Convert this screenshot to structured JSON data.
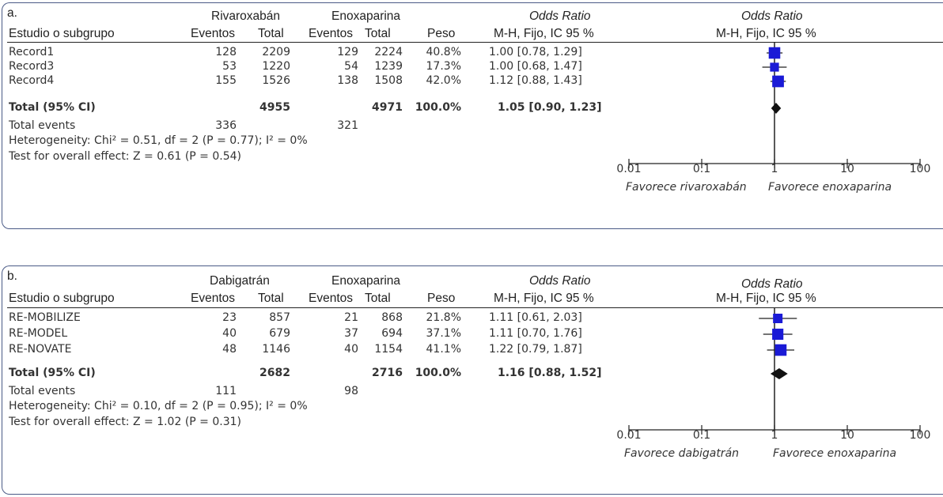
{
  "chart_data": [
    {
      "type": "forest",
      "panel_label": "a.",
      "col_study": "Estudio o subgrupo",
      "group1": "Rivaroxabán",
      "group2": "Enoxaparina",
      "col_events": "Eventos",
      "col_total": "Total",
      "col_weight": "Peso",
      "or_title": "Odds Ratio",
      "or_method": "M-H, Fijo, IC 95 %",
      "studies": [
        {
          "name": "Record1",
          "e1": "128",
          "n1": "2209",
          "e2": "129",
          "n2": "2224",
          "weight": "40.8%",
          "ci_text": "1.00 [0.78, 1.29]",
          "or": 1.0,
          "lo": 0.78,
          "hi": 1.29,
          "w": 40.8
        },
        {
          "name": "Record3",
          "e1": "53",
          "n1": "1220",
          "e2": "54",
          "n2": "1239",
          "weight": "17.3%",
          "ci_text": "1.00 [0.68, 1.47]",
          "or": 1.0,
          "lo": 0.68,
          "hi": 1.47,
          "w": 17.3
        },
        {
          "name": "Record4",
          "e1": "155",
          "n1": "1526",
          "e2": "138",
          "n2": "1508",
          "weight": "42.0%",
          "ci_text": "1.12 [0.88, 1.43]",
          "or": 1.12,
          "lo": 0.88,
          "hi": 1.43,
          "w": 42.0
        }
      ],
      "total": {
        "label": "Total (95% CI)",
        "n1": "4955",
        "n2": "4971",
        "weight": "100.0%",
        "ci_text": "1.05 [0.90, 1.23]",
        "or": 1.05,
        "lo": 0.9,
        "hi": 1.23
      },
      "events": {
        "label": "Total events",
        "e1": "336",
        "e2": "321"
      },
      "heterogeneity": "Heterogeneity: Chi² = 0.51, df = 2 (P = 0.77); I² = 0%",
      "overall": "Test for overall effect: Z = 0.61 (P = 0.54)",
      "x_ticks": [
        {
          "v": 0.01,
          "label": "0.01"
        },
        {
          "v": 0.1,
          "label": "0.1"
        },
        {
          "v": 1,
          "label": "1"
        },
        {
          "v": 10,
          "label": "10"
        },
        {
          "v": 100,
          "label": "100"
        }
      ],
      "xscale": "log",
      "xlim": [
        0.01,
        100
      ],
      "favours_left": "Favorece rivaroxabán",
      "favours_right": "Favorece enoxaparina",
      "colors": {
        "square": "#1a1ad6",
        "diamond": "#111111",
        "line": "#222222"
      }
    },
    {
      "type": "forest",
      "panel_label": "b.",
      "col_study": "Estudio o subgrupo",
      "group1": "Dabigatrán",
      "group2": "Enoxaparina",
      "col_events": "Eventos",
      "col_total": "Total",
      "col_weight": "Peso",
      "or_title": "Odds Ratio",
      "or_method": "M-H, Fijo, IC 95 %",
      "studies": [
        {
          "name": "RE-MOBILIZE",
          "e1": "23",
          "n1": "857",
          "e2": "21",
          "n2": "868",
          "weight": "21.8%",
          "ci_text": "1.11 [0.61, 2.03]",
          "or": 1.11,
          "lo": 0.61,
          "hi": 2.03,
          "w": 21.8
        },
        {
          "name": "RE-MODEL",
          "e1": "40",
          "n1": "679",
          "e2": "37",
          "n2": "694",
          "weight": "37.1%",
          "ci_text": "1.11 [0.70, 1.76]",
          "or": 1.11,
          "lo": 0.7,
          "hi": 1.76,
          "w": 37.1
        },
        {
          "name": "RE-NOVATE",
          "e1": "48",
          "n1": "1146",
          "e2": "40",
          "n2": "1154",
          "weight": "41.1%",
          "ci_text": "1.22 [0.79, 1.87]",
          "or": 1.22,
          "lo": 0.79,
          "hi": 1.87,
          "w": 41.1
        }
      ],
      "total": {
        "label": "Total (95% CI)",
        "n1": "2682",
        "n2": "2716",
        "weight": "100.0%",
        "ci_text": "1.16 [0.88, 1.52]",
        "or": 1.16,
        "lo": 0.88,
        "hi": 1.52
      },
      "events": {
        "label": "Total events",
        "e1": "111",
        "e2": "98"
      },
      "heterogeneity": "Heterogeneity: Chi² = 0.10, df = 2 (P = 0.95); I² = 0%",
      "overall": "Test for overall effect: Z = 1.02 (P = 0.31)",
      "x_ticks": [
        {
          "v": 0.01,
          "label": "0.01"
        },
        {
          "v": 0.1,
          "label": "0.1"
        },
        {
          "v": 1,
          "label": "1"
        },
        {
          "v": 10,
          "label": "10"
        },
        {
          "v": 100,
          "label": "100"
        }
      ],
      "xscale": "log",
      "xlim": [
        0.01,
        100
      ],
      "favours_left": "Favorece dabigatrán",
      "favours_right": "Favorece enoxaparina",
      "colors": {
        "square": "#1a1ad6",
        "diamond": "#111111",
        "line": "#222222"
      }
    }
  ]
}
